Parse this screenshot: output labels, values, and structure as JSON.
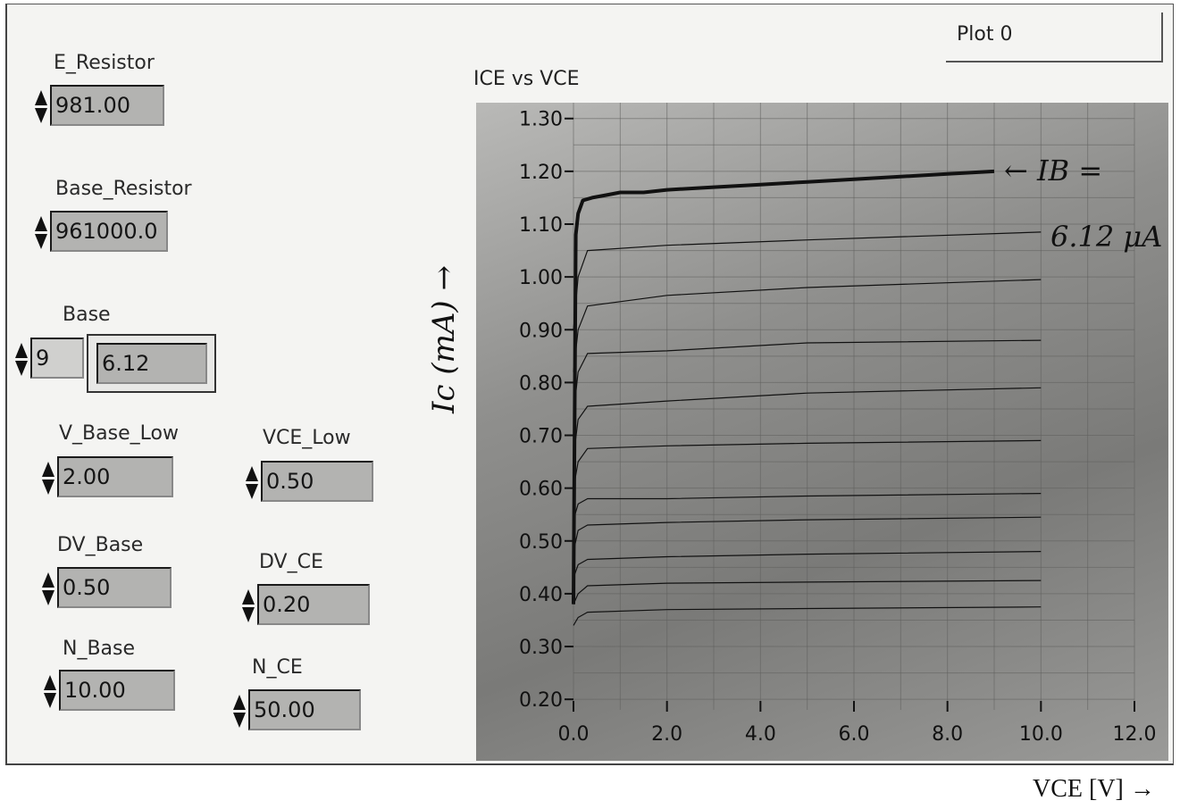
{
  "controls": {
    "e_resistor": {
      "label": "E_Resistor",
      "value": "981.00"
    },
    "base_resistor": {
      "label": "Base_Resistor",
      "value": "961000.0"
    },
    "base": {
      "label": "Base",
      "index": "9",
      "value": "6.12"
    },
    "v_base_low": {
      "label": "V_Base_Low",
      "value": "2.00"
    },
    "vce_low": {
      "label": "VCE_Low",
      "value": "0.50"
    },
    "dv_base": {
      "label": "DV_Base",
      "value": "0.50"
    },
    "dv_ce": {
      "label": "DV_CE",
      "value": "0.20"
    },
    "n_base": {
      "label": "N_Base",
      "value": "10.00"
    },
    "n_ce": {
      "label": "N_CE",
      "value": "50.00"
    }
  },
  "legend": {
    "plot_label": "Plot 0"
  },
  "annotations": {
    "y_axis_handwritten": "Ic (mA) →",
    "ib_label_line1": "← IB =",
    "ib_label_line2": "6.12 μA",
    "x_axis_caption": "VCE [V] →"
  },
  "chart_data": {
    "type": "line",
    "title": "ICE vs VCE",
    "xlabel": "VCE [V]",
    "ylabel": "Ic (mA)",
    "xlim": [
      0.0,
      12.0
    ],
    "ylim": [
      0.18,
      1.33
    ],
    "x_ticks": [
      "0.0",
      "2.0",
      "4.0",
      "6.0",
      "8.0",
      "10.0",
      "12.0"
    ],
    "y_ticks": [
      "1.30",
      "1.20",
      "1.10",
      "1.00",
      "0.90",
      "0.80",
      "0.70",
      "0.60",
      "0.50",
      "0.40",
      "0.30",
      "0.20"
    ],
    "grid": true,
    "series": [
      {
        "highlight": false,
        "x": [
          0.0,
          0.1,
          0.3,
          2.0,
          5.0,
          10.0
        ],
        "y": [
          0.34,
          0.355,
          0.365,
          0.37,
          0.372,
          0.375
        ]
      },
      {
        "highlight": false,
        "x": [
          0.0,
          0.1,
          0.3,
          2.0,
          5.0,
          10.0
        ],
        "y": [
          0.38,
          0.4,
          0.415,
          0.42,
          0.422,
          0.425
        ]
      },
      {
        "highlight": false,
        "x": [
          0.0,
          0.1,
          0.3,
          2.0,
          5.0,
          10.0
        ],
        "y": [
          0.43,
          0.455,
          0.465,
          0.47,
          0.475,
          0.48
        ]
      },
      {
        "highlight": false,
        "x": [
          0.0,
          0.1,
          0.3,
          2.0,
          5.0,
          10.0
        ],
        "y": [
          0.48,
          0.52,
          0.53,
          0.535,
          0.54,
          0.545
        ]
      },
      {
        "highlight": false,
        "x": [
          0.0,
          0.1,
          0.3,
          2.0,
          5.0,
          10.0
        ],
        "y": [
          0.54,
          0.57,
          0.58,
          0.58,
          0.585,
          0.59
        ]
      },
      {
        "highlight": false,
        "x": [
          0.0,
          0.1,
          0.3,
          2.0,
          5.0,
          10.0
        ],
        "y": [
          0.6,
          0.65,
          0.675,
          0.68,
          0.685,
          0.69
        ]
      },
      {
        "highlight": false,
        "x": [
          0.0,
          0.1,
          0.3,
          2.0,
          5.0,
          10.0
        ],
        "y": [
          0.66,
          0.73,
          0.755,
          0.765,
          0.78,
          0.79
        ]
      },
      {
        "highlight": false,
        "x": [
          0.0,
          0.1,
          0.3,
          2.0,
          5.0,
          10.0
        ],
        "y": [
          0.74,
          0.82,
          0.855,
          0.86,
          0.875,
          0.88
        ]
      },
      {
        "highlight": false,
        "x": [
          0.0,
          0.1,
          0.3,
          2.0,
          5.0,
          10.0
        ],
        "y": [
          0.82,
          0.9,
          0.945,
          0.965,
          0.98,
          0.995
        ]
      },
      {
        "highlight": false,
        "x": [
          0.0,
          0.1,
          0.3,
          2.0,
          5.0,
          10.0
        ],
        "y": [
          0.9,
          1.0,
          1.05,
          1.06,
          1.07,
          1.085
        ]
      },
      {
        "highlight": true,
        "x": [
          0.0,
          0.05,
          0.1,
          0.2,
          0.4,
          0.7,
          1.0,
          1.5,
          2.0,
          3.0,
          4.0,
          5.0,
          6.0,
          7.0,
          8.0,
          9.0
        ],
        "y": [
          0.38,
          1.08,
          1.12,
          1.145,
          1.15,
          1.155,
          1.16,
          1.16,
          1.165,
          1.17,
          1.175,
          1.18,
          1.185,
          1.19,
          1.195,
          1.2
        ]
      }
    ]
  }
}
